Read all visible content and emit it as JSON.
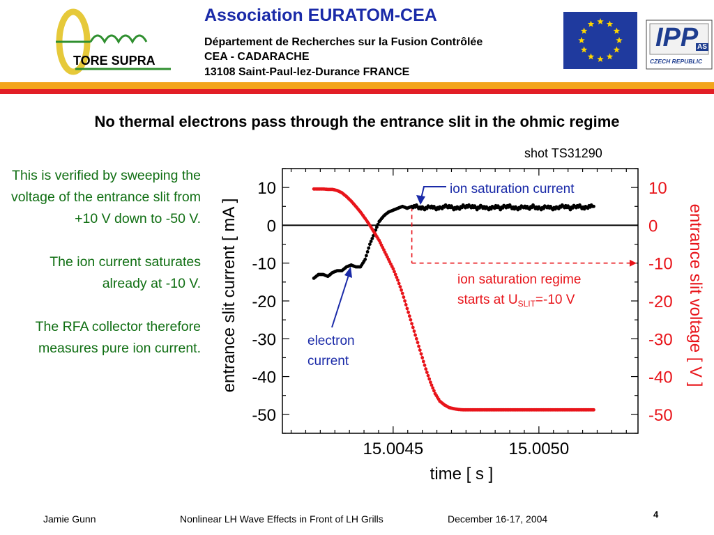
{
  "header": {
    "logo_text": "TORE SUPRA",
    "title": "Association  EURATOM-CEA",
    "line1": "Département de Recherches sur la Fusion Contrôlée",
    "line2": "CEA - CADARACHE",
    "line3": "13108 Saint-Paul-lez-Durance   FRANCE",
    "partner_logo_text": "IPP",
    "partner_logo_sub": "AS",
    "partner_country": "CZECH REPUBLIC"
  },
  "slide": {
    "title": "No thermal electrons pass through the entrance slit in the ohmic regime",
    "side_text": [
      "This is verified by sweeping the voltage of the entrance slit from +10 V down to -50 V.",
      "The ion current saturates already at -10 V.",
      "The RFA collector therefore measures pure ion current."
    ]
  },
  "footer": {
    "author": "Jamie Gunn",
    "talk": "Nonlinear LH Wave Effects in Front of LH Grills",
    "date": "December 16-17, 2004",
    "page": "4"
  },
  "colors": {
    "blue_title": "#1a2aa8",
    "green_text": "#0f6e12",
    "red_series": "#e8141a",
    "black_series": "#000000",
    "annotation_blue": "#1a2aa8",
    "stripe_orange": "#f3a51c",
    "stripe_red": "#e21e26",
    "eu_blue": "#1f3a9e",
    "eu_star": "#ffd700"
  },
  "chart_data": {
    "type": "scatter",
    "subtitle": "shot TS31290",
    "xlabel": "time  [ s ]",
    "ylabel_left": "entrance slit current  [ mA ]",
    "ylabel_right": "entrance slit voltage [ V ]",
    "xlim": [
      15.00412,
      15.00534
    ],
    "ylim_left": [
      -55,
      15
    ],
    "ylim_right": [
      -55,
      15
    ],
    "x_ticks": [
      "15.0045",
      "15.0050"
    ],
    "y_ticks": [
      "10",
      "0",
      "-10",
      "-20",
      "-30",
      "-40",
      "-50"
    ],
    "y_tick_values": [
      10,
      0,
      -10,
      -20,
      -30,
      -40,
      -50
    ],
    "x_tick_values": [
      15.0045,
      15.005
    ],
    "annotations": {
      "ion_sat_current": "ion saturation current",
      "regime_line1": "ion saturation regime",
      "regime_line2_prefix": "starts at U",
      "regime_sub": "SLIT",
      "regime_line2_suffix": "=-10 V",
      "electron_line1": "electron",
      "electron_line2": "current"
    },
    "series": [
      {
        "name": "entrance slit current",
        "axis": "left",
        "color": "#000000",
        "x": [
          15.004228,
          15.004244,
          15.00426,
          15.004276,
          15.004292,
          15.004308,
          15.004324,
          15.00434,
          15.004356,
          15.004372,
          15.004388,
          15.004404,
          15.00442,
          15.004436,
          15.004452,
          15.004468,
          15.004484,
          15.0045,
          15.004516,
          15.004532,
          15.004548,
          15.004564,
          15.00458,
          15.004596,
          15.004612,
          15.004628,
          15.004644,
          15.00466,
          15.004676,
          15.004692,
          15.004708,
          15.004724,
          15.00474,
          15.004756,
          15.004772,
          15.004788,
          15.004804,
          15.00482,
          15.004836,
          15.004852,
          15.004868,
          15.004884,
          15.0049,
          15.004916,
          15.004932,
          15.004948,
          15.004964,
          15.00498,
          15.004996,
          15.005012,
          15.005028,
          15.005044,
          15.00506,
          15.005076,
          15.005092,
          15.005108,
          15.005124,
          15.00514,
          15.005156,
          15.005172,
          15.005188
        ],
        "y": [
          -14,
          -13,
          -13,
          -13.5,
          -12.5,
          -12,
          -12,
          -11,
          -10.5,
          -11,
          -11,
          -9,
          -5,
          -2,
          1,
          2.5,
          3.5,
          4,
          4.5,
          5,
          4.5,
          5,
          5,
          4.5,
          4.5,
          5,
          4.5,
          4.5,
          5,
          5,
          4.5,
          4.5,
          5,
          5,
          5,
          4.5,
          5,
          4.5,
          4.5,
          5,
          4.5,
          5,
          5,
          4.5,
          4.5,
          5,
          4.5,
          5,
          4.5,
          4.5,
          5,
          4.5,
          4.5,
          5,
          5,
          4.5,
          5,
          5,
          4.5,
          5,
          5
        ]
      },
      {
        "name": "entrance slit voltage",
        "axis": "right",
        "color": "#e8141a",
        "x": [
          15.004228,
          15.004244,
          15.00426,
          15.004276,
          15.004292,
          15.004308,
          15.004324,
          15.00434,
          15.004356,
          15.004372,
          15.004388,
          15.004404,
          15.00442,
          15.004436,
          15.004452,
          15.004468,
          15.004484,
          15.0045,
          15.004516,
          15.004532,
          15.004548,
          15.004564,
          15.00458,
          15.004596,
          15.004612,
          15.004628,
          15.004644,
          15.00466,
          15.004676,
          15.004692,
          15.004708,
          15.004724,
          15.00474,
          15.004756,
          15.004772,
          15.004788,
          15.004804,
          15.00482,
          15.004836,
          15.004852,
          15.004868,
          15.004884,
          15.0049,
          15.004916,
          15.004932,
          15.004948,
          15.004964,
          15.00498,
          15.004996,
          15.005012,
          15.005028,
          15.005044,
          15.00506,
          15.005076,
          15.005092,
          15.005108,
          15.005124,
          15.00514,
          15.005156,
          15.005172,
          15.005188
        ],
        "y": [
          9.6,
          9.6,
          9.6,
          9.5,
          9.5,
          9.2,
          8.6,
          7.6,
          6.4,
          5,
          3.5,
          1.8,
          0,
          -2,
          -4,
          -6.5,
          -9,
          -11.5,
          -14.5,
          -18,
          -22,
          -26,
          -30,
          -34,
          -38,
          -41.5,
          -44.5,
          -46.5,
          -47.5,
          -48.2,
          -48.5,
          -48.7,
          -48.8,
          -48.8,
          -48.8,
          -48.8,
          -48.8,
          -48.8,
          -48.8,
          -48.8,
          -48.8,
          -48.8,
          -48.8,
          -48.8,
          -48.8,
          -48.8,
          -48.8,
          -48.8,
          -48.8,
          -48.8,
          -48.8,
          -48.8,
          -48.8,
          -48.8,
          -48.8,
          -48.8,
          -48.8,
          -48.8,
          -48.8,
          -48.8,
          -48.8
        ]
      }
    ],
    "reference_lines": {
      "zero_current": 0,
      "saturation_time": 15.004564,
      "saturation_voltage": -10
    }
  }
}
